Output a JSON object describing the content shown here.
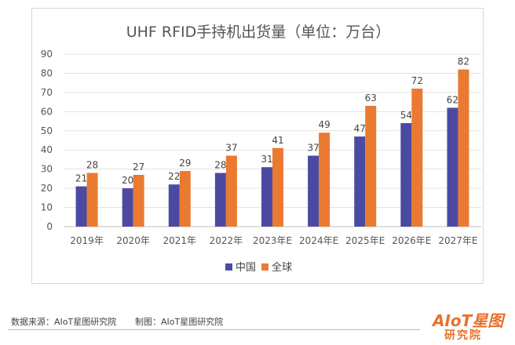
{
  "chart_data": {
    "type": "bar",
    "title": "UHF  RFID手持机出货量（单位：万台）",
    "categories": [
      "2019年",
      "2020年",
      "2021年",
      "2022年",
      "2023年E",
      "2024年E",
      "2025年E",
      "2026年E",
      "2027年E"
    ],
    "series": [
      {
        "name": "中国",
        "values": [
          21,
          20,
          22,
          28,
          31,
          37,
          47,
          54,
          62
        ],
        "color": "#4b4aa3"
      },
      {
        "name": "全球",
        "values": [
          28,
          27,
          29,
          37,
          41,
          49,
          63,
          72,
          82
        ],
        "color": "#ea7a32"
      }
    ],
    "ylim": [
      0,
      90
    ],
    "yticks": [
      0,
      10,
      20,
      30,
      40,
      50,
      60,
      70,
      80,
      90
    ],
    "grid": true,
    "legend": "bottom-center"
  },
  "footer": {
    "source": "数据来源：AIoT星图研究院",
    "credit": "制图：AIoT星图研究院"
  },
  "brand": {
    "mark": "AIoT星图",
    "sub": "研究院",
    "color": "#e7712b"
  }
}
